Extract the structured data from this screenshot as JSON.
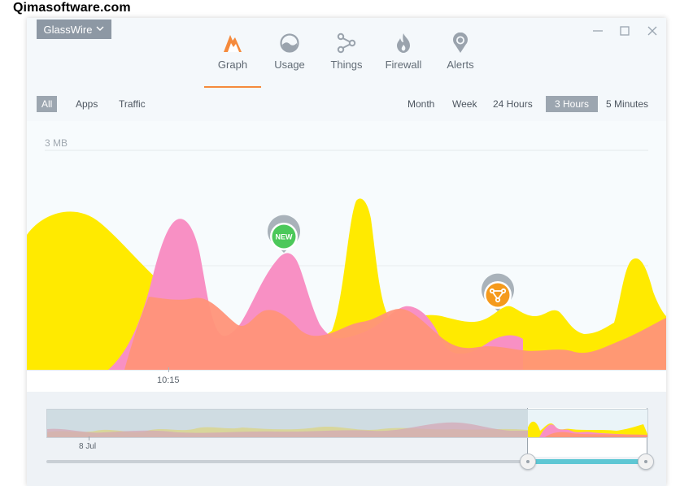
{
  "watermark": "Qimasoftware.com",
  "app": {
    "menu_label": "GlassWire"
  },
  "nav": [
    {
      "label": "Graph",
      "icon": "graph-icon",
      "active": true
    },
    {
      "label": "Usage",
      "icon": "usage-icon"
    },
    {
      "label": "Things",
      "icon": "things-icon"
    },
    {
      "label": "Firewall",
      "icon": "firewall-icon"
    },
    {
      "label": "Alerts",
      "icon": "alerts-icon"
    }
  ],
  "filters": {
    "all": "All",
    "apps": "Apps",
    "traffic": "Traffic"
  },
  "ranges": {
    "month": "Month",
    "week": "Week",
    "h24": "24  Hours",
    "h3": "3  Hours",
    "m5": "5 Minutes",
    "selected": "3  Hours"
  },
  "graph": {
    "scale_label": "3 MB",
    "time_label": "10:15",
    "markers": [
      {
        "label": "NEW",
        "color": "#4cc85a"
      },
      {
        "icon": "network-device-icon",
        "color": "#f59a1c"
      }
    ],
    "colors": {
      "upload": "#ffea00",
      "download": "#f890c4",
      "overlap": "#ff9479"
    }
  },
  "overview": {
    "date_label": "8 Jul"
  }
}
